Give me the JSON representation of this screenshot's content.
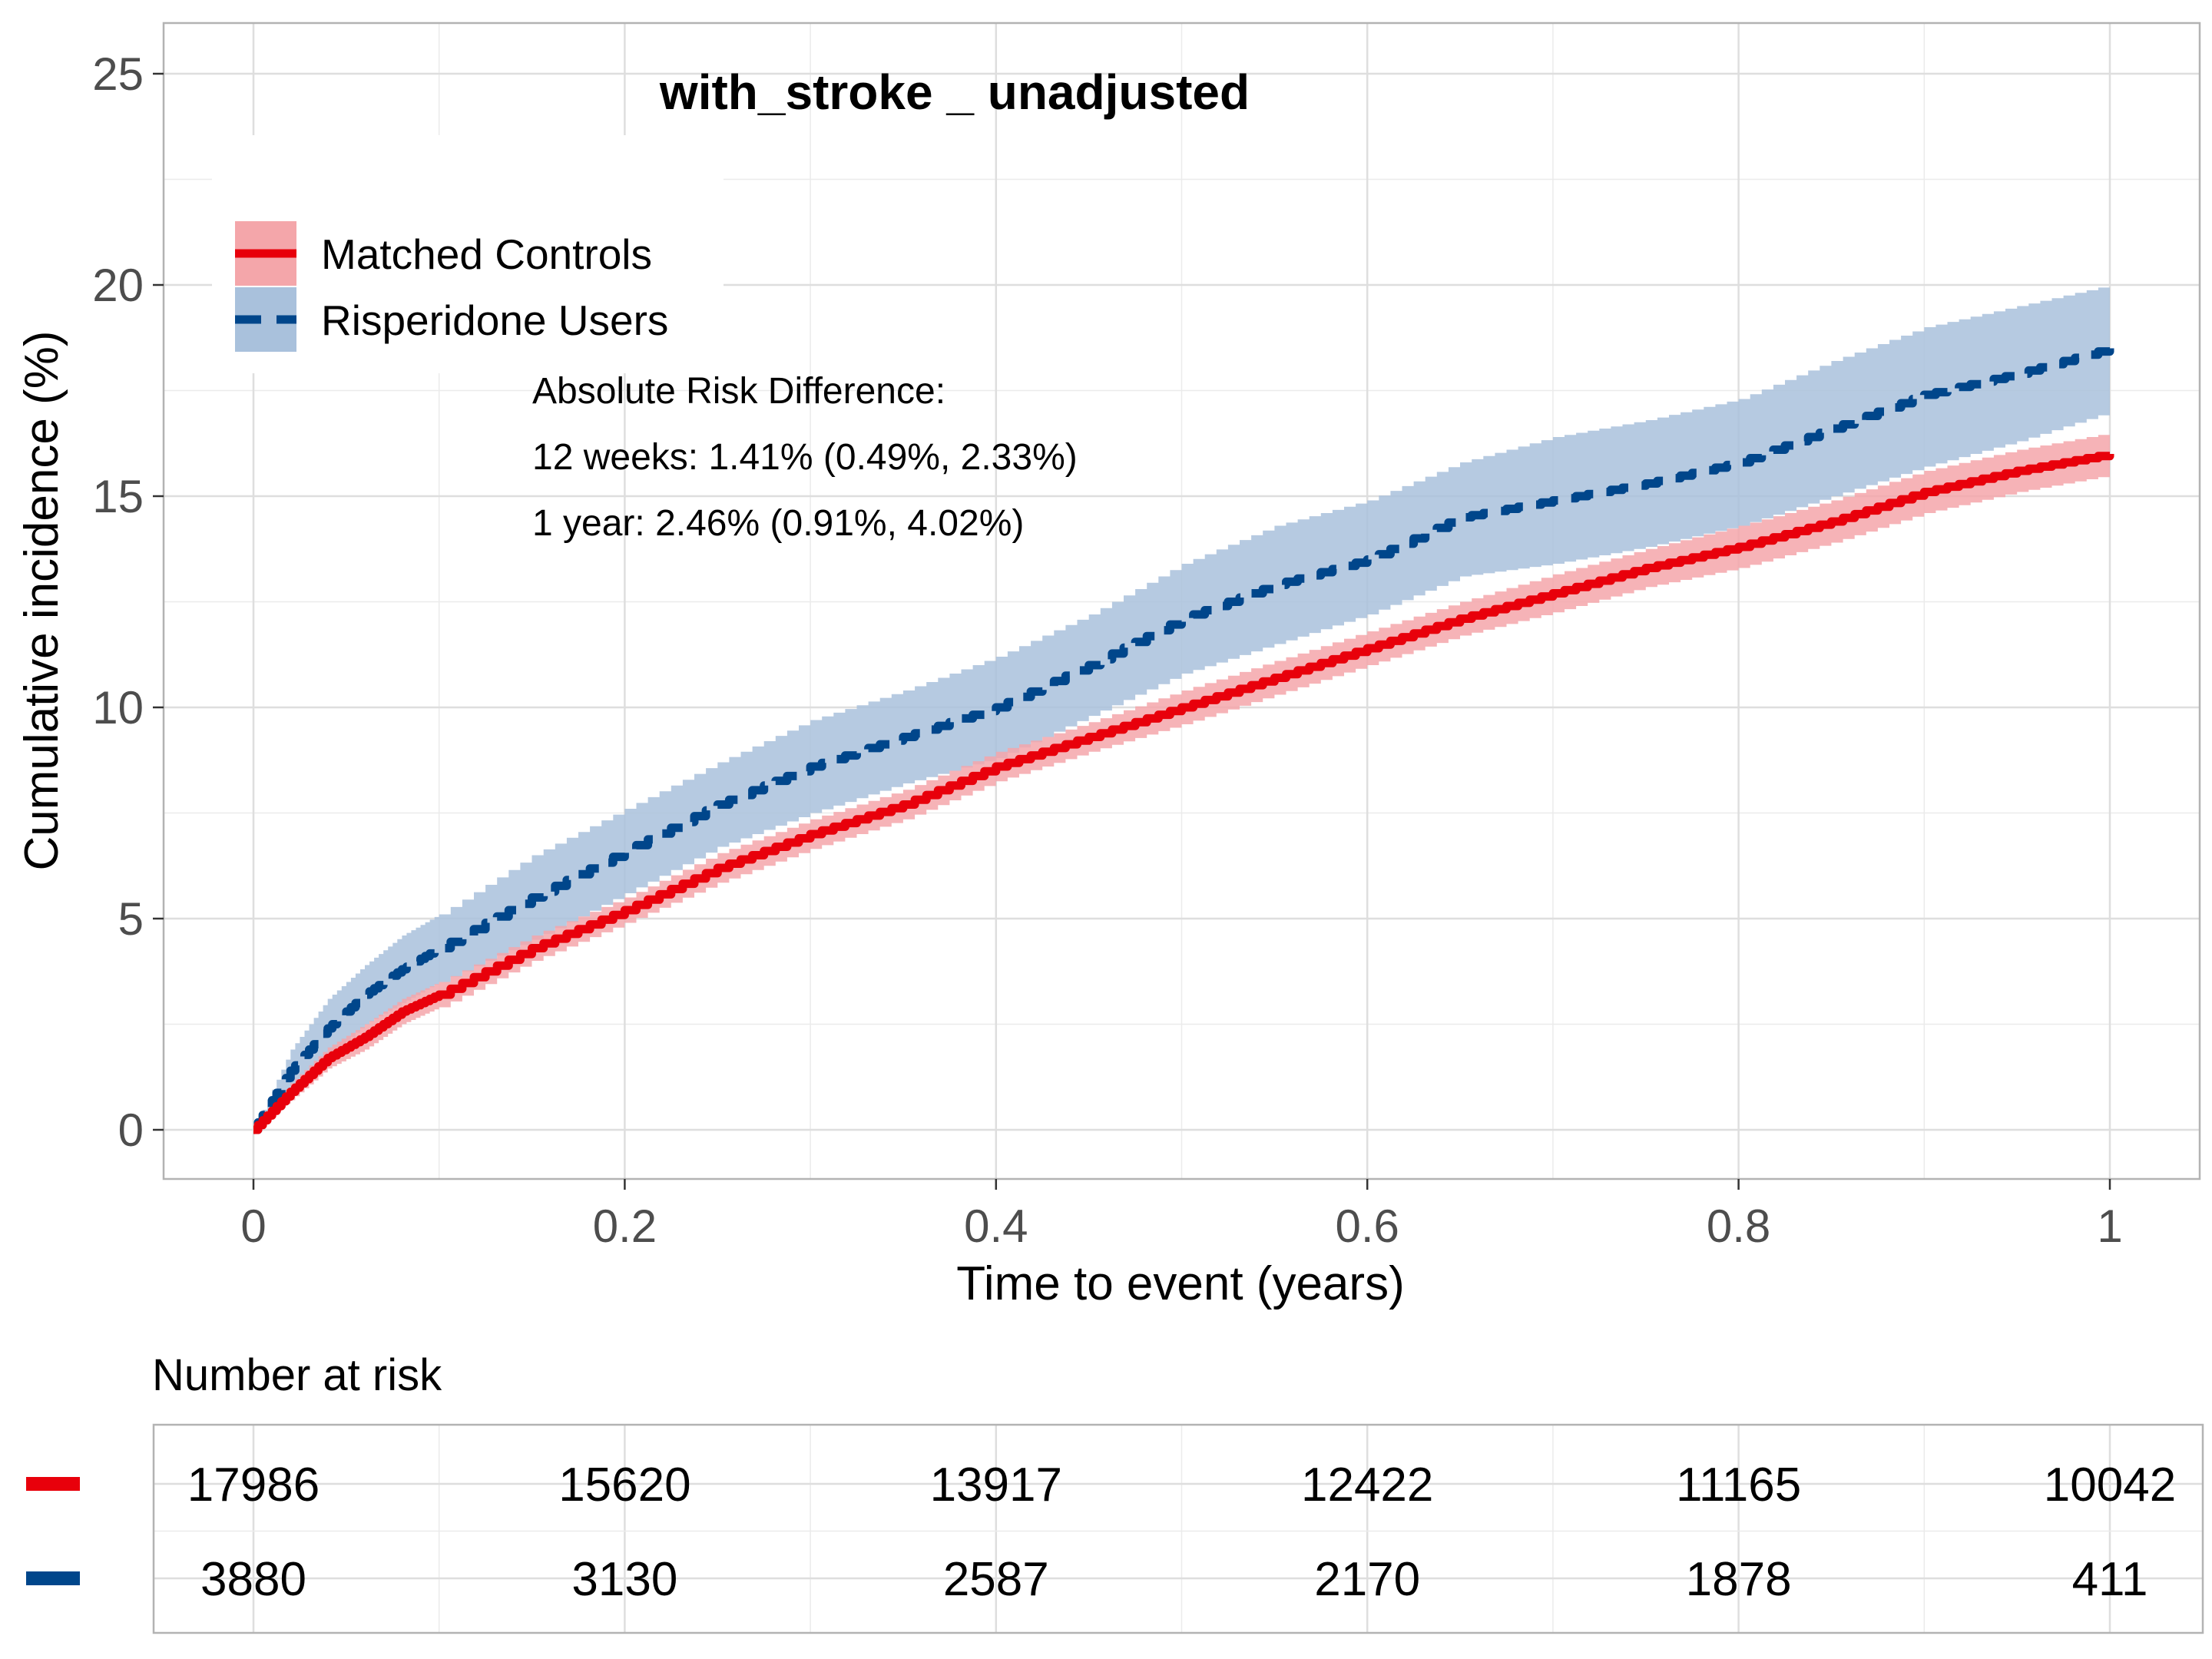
{
  "chart_data": {
    "type": "line",
    "title": "with_stroke _ unadjusted",
    "xlabel": "Time to event (years)",
    "ylabel": "Cumulative incidence (%)",
    "xlim": [
      0,
      1
    ],
    "ylim": [
      0,
      25
    ],
    "x_ticks": [
      0,
      0.2,
      0.4,
      0.6,
      0.8,
      1
    ],
    "x_tick_labels": [
      "0",
      "0.2",
      "0.4",
      "0.6",
      "0.8",
      "1"
    ],
    "y_ticks": [
      0,
      5,
      10,
      15,
      20,
      25
    ],
    "y_tick_labels": [
      "0",
      "5",
      "10",
      "15",
      "20",
      "25"
    ],
    "grid": true,
    "legend_position": "top-left",
    "series": [
      {
        "name": "Matched Controls",
        "color": "#e8000b",
        "band_color": "#f4a6aa",
        "line_style": "solid",
        "x": [
          0,
          0.02,
          0.04,
          0.06,
          0.08,
          0.1,
          0.15,
          0.2,
          0.25,
          0.3,
          0.35,
          0.4,
          0.45,
          0.5,
          0.55,
          0.6,
          0.65,
          0.7,
          0.75,
          0.8,
          0.85,
          0.9,
          0.95,
          1.0
        ],
        "y": [
          0,
          0.9,
          1.7,
          2.2,
          2.8,
          3.2,
          4.3,
          5.2,
          6.2,
          7.0,
          7.7,
          8.6,
          9.3,
          10.0,
          10.7,
          11.4,
          12.1,
          12.7,
          13.3,
          13.8,
          14.4,
          15.1,
          15.6,
          16.0
        ],
        "lower": [
          0,
          0.7,
          1.45,
          1.9,
          2.5,
          2.9,
          4.0,
          4.9,
          5.85,
          6.65,
          7.35,
          8.25,
          8.95,
          9.6,
          10.3,
          11.0,
          11.7,
          12.25,
          12.85,
          13.3,
          13.9,
          14.6,
          15.1,
          15.5
        ],
        "upper": [
          0,
          1.1,
          1.95,
          2.5,
          3.1,
          3.5,
          4.6,
          5.5,
          6.55,
          7.35,
          8.05,
          8.95,
          9.65,
          10.4,
          11.1,
          11.8,
          12.5,
          13.15,
          13.75,
          14.3,
          14.9,
          15.6,
          16.1,
          16.5
        ]
      },
      {
        "name": "Risperidone Users",
        "color": "#00468b",
        "band_color": "#a9c1dc",
        "line_style": "dashed",
        "x": [
          0,
          0.02,
          0.04,
          0.06,
          0.08,
          0.1,
          0.15,
          0.2,
          0.25,
          0.3,
          0.35,
          0.4,
          0.45,
          0.5,
          0.55,
          0.6,
          0.65,
          0.7,
          0.75,
          0.8,
          0.85,
          0.9,
          0.95,
          1.0
        ],
        "y": [
          0,
          1.4,
          2.4,
          3.2,
          3.8,
          4.3,
          5.5,
          6.6,
          7.7,
          8.6,
          9.3,
          10.0,
          11.0,
          12.1,
          12.9,
          13.5,
          14.5,
          14.9,
          15.3,
          15.8,
          16.6,
          17.4,
          17.9,
          18.5
        ],
        "lower": [
          0,
          0.9,
          1.7,
          2.5,
          3.0,
          3.5,
          4.5,
          5.6,
          6.7,
          7.5,
          8.2,
          8.8,
          9.8,
          10.8,
          11.5,
          12.2,
          13.1,
          13.4,
          13.8,
          14.3,
          15.0,
          15.7,
          16.3,
          17.0
        ],
        "upper": [
          0,
          1.9,
          3.1,
          3.9,
          4.6,
          5.1,
          6.5,
          7.6,
          8.7,
          9.7,
          10.4,
          11.2,
          12.2,
          13.4,
          14.3,
          14.9,
          15.8,
          16.4,
          16.8,
          17.3,
          18.2,
          19.0,
          19.5,
          20.0
        ]
      }
    ],
    "annotations": [
      "Absolute Risk Difference:",
      "12 weeks: 1.41% (0.49%, 2.33%)",
      "1 year: 2.46% (0.91%, 4.02%)"
    ],
    "risk_table": {
      "title": "Number at risk",
      "x": [
        0,
        0.2,
        0.4,
        0.6,
        0.8,
        1
      ],
      "rows": [
        {
          "color": "#e8000b",
          "values": [
            "17986",
            "15620",
            "13917",
            "12422",
            "11165",
            "10042"
          ]
        },
        {
          "color": "#00468b",
          "values": [
            "3880",
            "3130",
            "2587",
            "2170",
            "1878",
            "411"
          ]
        }
      ]
    }
  }
}
